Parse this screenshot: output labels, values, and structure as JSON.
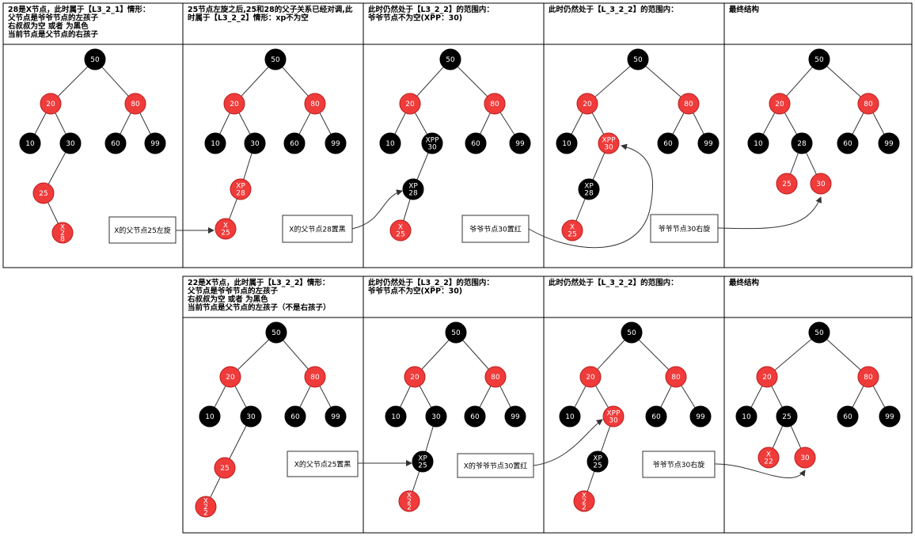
{
  "colors": {
    "red": "#f03b3b",
    "red_stroke": "#b81c1c",
    "black": "#000000",
    "border": "#000000"
  },
  "row1": [
    {
      "header": [
        "28是X节点，此时属于【L3_2_1】情形：",
        "父节点是爷爷节点的左孩子",
        "右叔叔为空 或者 为黑色",
        "当前节点是父节点的右孩子"
      ]
    },
    {
      "header": [
        "25节点左旋之后,25和28的父子关系已经对调,此",
        "时属于【L3_2_2】情形：xp不为空"
      ]
    },
    {
      "header": [
        "此时仍然处于【L3_2_2】的范围内：",
        "爷爷节点不为空(XPP：30)"
      ]
    },
    {
      "header": [
        "此时仍然处于【L_3_2_2】的范围内："
      ]
    },
    {
      "header": [
        "最终结构"
      ]
    }
  ],
  "row2": [
    {
      "header": [
        "22是X节点，此时属于【L3_2_2】情形：",
        "父节点是爷爷节点的左孩子",
        "右叔叔为空 或者 为黑色",
        "当前节点是父节点的左孩子（不是右孩子）"
      ]
    },
    {
      "header": [
        "此时仍然处于【L3_2_2】的范围内：",
        "爷爷节点不为空(XPP：30)"
      ]
    },
    {
      "header": [
        "此时仍然处于【L_3_2_2】的范围内："
      ]
    },
    {
      "header": [
        "最终结构"
      ]
    }
  ],
  "nodes": {
    "n50": "50",
    "n20": "20",
    "n80": "80",
    "n10": "10",
    "n30": "30",
    "n60": "60",
    "n99": "99",
    "n25": "25",
    "n28": "28",
    "x28": [
      "X",
      "2",
      "8"
    ],
    "xp28": [
      "XP",
      "28"
    ],
    "x25": [
      "X",
      "25"
    ],
    "xpp30": [
      "XPP",
      "30"
    ],
    "xp25": [
      "XP",
      "25"
    ],
    "x22": [
      "X",
      "2",
      "2"
    ],
    "x22b": [
      "X",
      "22"
    ]
  },
  "boxes": {
    "r1_b1": "X的父节点25左旋",
    "r1_b2": "X的父节点28置黑",
    "r1_b3": "爷爷节点30置红",
    "r1_b4": "爷爷节点30右旋",
    "r2_b1": "X的父节点25置黑",
    "r2_b2": "X的爷爷节点30置红",
    "r2_b3": "爷爷节点30右旋"
  }
}
